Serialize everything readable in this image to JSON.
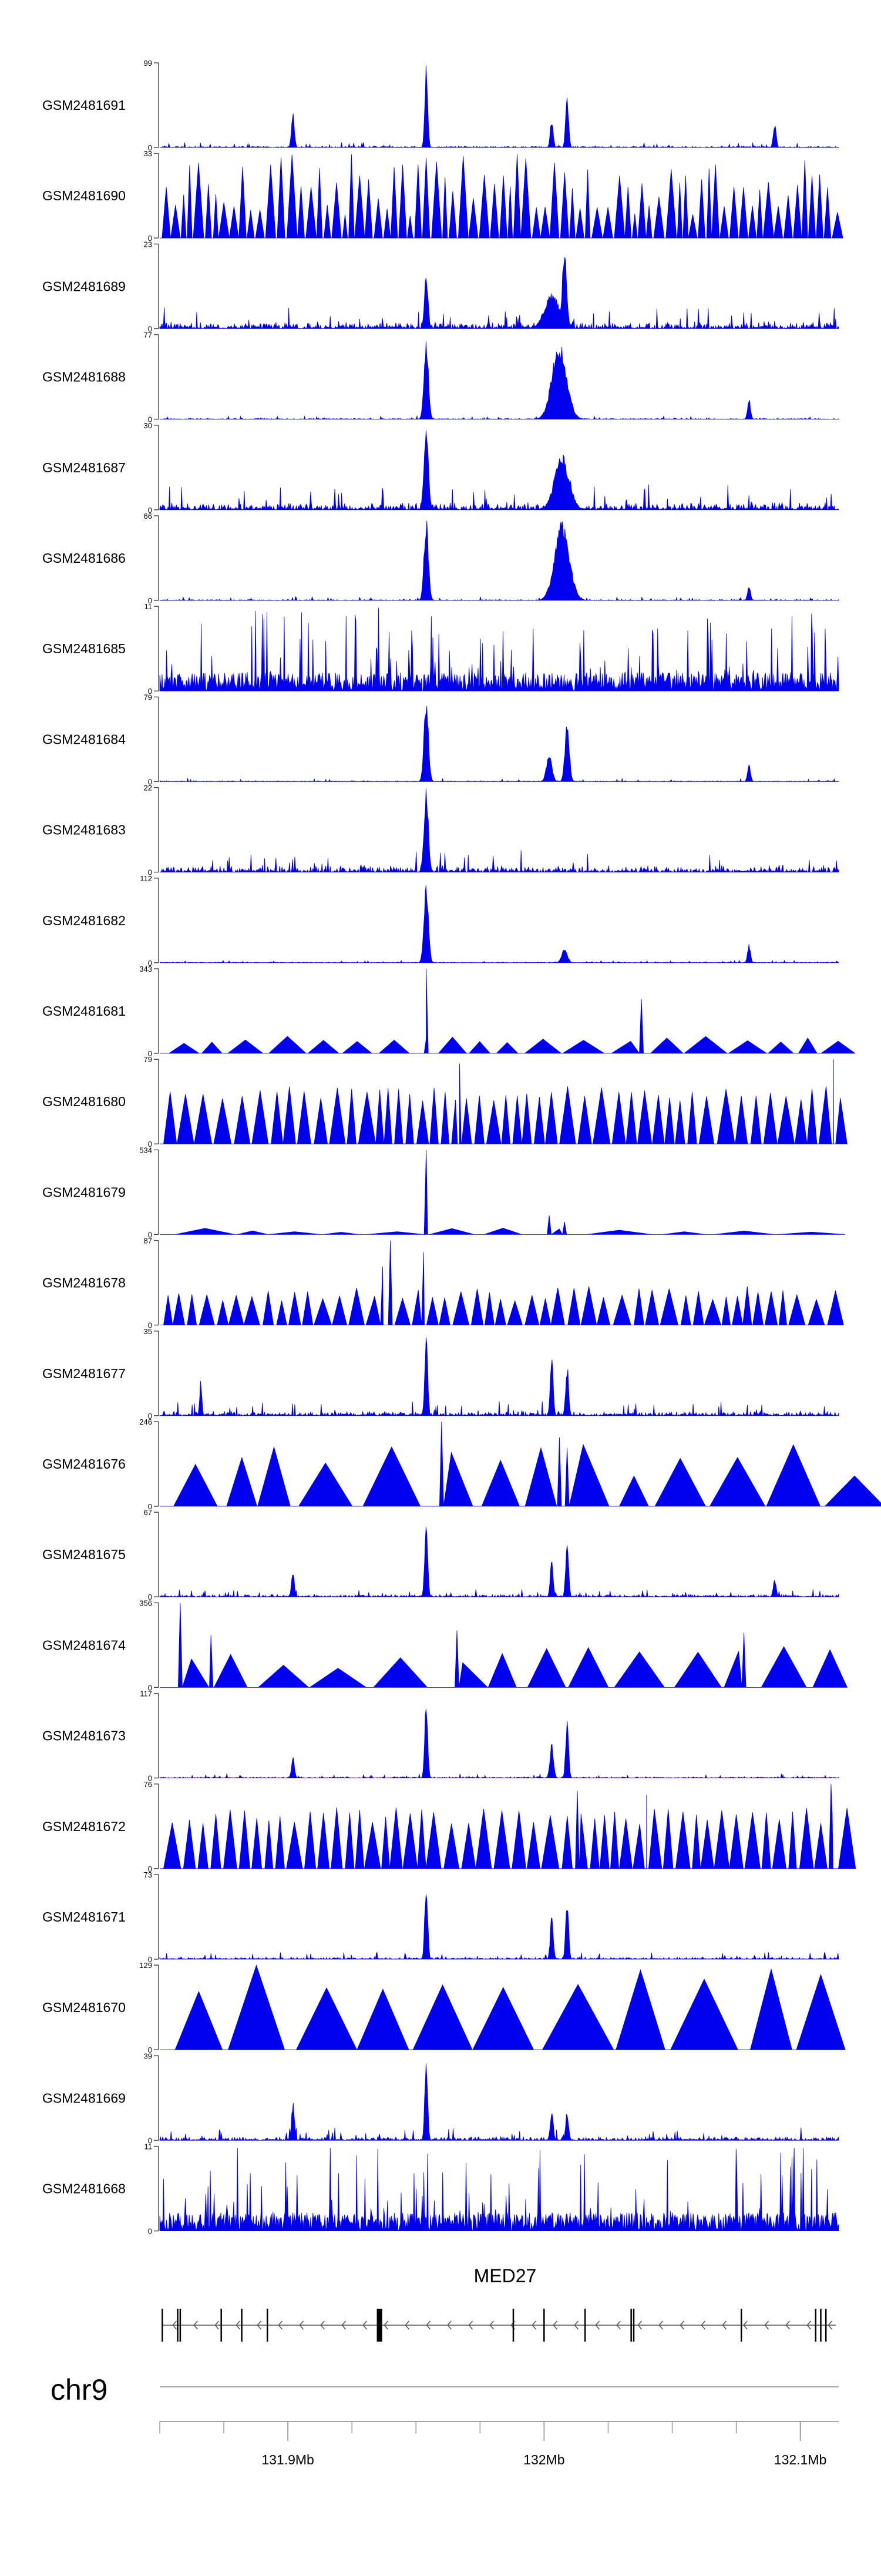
{
  "chart_data": {
    "type": "area",
    "track_color": "#0000ee",
    "gene_color": "#000000",
    "tracks": [
      {
        "name": "GSM2481691",
        "ymax": 99,
        "pattern": "peaks",
        "noise": 2,
        "peaks": [
          [
            131.954,
            99,
            0.0008
          ],
          [
            131.902,
            42,
            0.0008
          ],
          [
            132.003,
            35,
            0.0008
          ],
          [
            132.009,
            62,
            0.0008
          ],
          [
            132.09,
            30,
            0.0008
          ]
        ]
      },
      {
        "name": "GSM2481690",
        "ymax": 33,
        "pattern": "tri",
        "seg": 0.003,
        "lo": 8,
        "hi": 33
      },
      {
        "name": "GSM2481689",
        "ymax": 23,
        "pattern": "peaks",
        "noise": 2,
        "peaks": [
          [
            131.954,
            15,
            0.001
          ],
          [
            132.008,
            23,
            0.0012
          ],
          [
            132.003,
            10,
            0.004
          ]
        ]
      },
      {
        "name": "GSM2481688",
        "ymax": 77,
        "pattern": "peaks",
        "noise": 1,
        "peaks": [
          [
            131.954,
            77,
            0.0012
          ],
          [
            132.006,
            72,
            0.004
          ],
          [
            132.08,
            20,
            0.0008
          ]
        ]
      },
      {
        "name": "GSM2481687",
        "ymax": 30,
        "pattern": "peaks",
        "noise": 3,
        "peaks": [
          [
            131.954,
            30,
            0.0012
          ],
          [
            132.007,
            20,
            0.004
          ]
        ]
      },
      {
        "name": "GSM2481686",
        "ymax": 66,
        "pattern": "peaks",
        "noise": 1,
        "peaks": [
          [
            131.954,
            66,
            0.0012
          ],
          [
            132.007,
            62,
            0.004
          ],
          [
            132.08,
            12,
            0.0008
          ]
        ]
      },
      {
        "name": "GSM2481685",
        "ymax": 11,
        "pattern": "noise",
        "lo": 2,
        "hi": 11
      },
      {
        "name": "GSM2481684",
        "ymax": 79,
        "pattern": "peaks",
        "noise": 1,
        "peaks": [
          [
            131.954,
            79,
            0.0012
          ],
          [
            132.002,
            25,
            0.0015
          ],
          [
            132.009,
            55,
            0.0012
          ],
          [
            132.08,
            18,
            0.0008
          ]
        ]
      },
      {
        "name": "GSM2481683",
        "ymax": 22,
        "pattern": "peaks",
        "noise": 2,
        "peaks": [
          [
            131.954,
            22,
            0.0012
          ]
        ]
      },
      {
        "name": "GSM2481682",
        "ymax": 112,
        "pattern": "peaks",
        "noise": 1,
        "peaks": [
          [
            131.954,
            112,
            0.0012
          ],
          [
            132.008,
            20,
            0.0015
          ],
          [
            132.08,
            25,
            0.0008
          ]
        ]
      },
      {
        "name": "GSM2481681",
        "ymax": 343,
        "pattern": "tri",
        "seg": 0.012,
        "lo": 40,
        "hi": 70,
        "spikes": [
          [
            131.954,
            343
          ],
          [
            132.038,
            220
          ]
        ]
      },
      {
        "name": "GSM2481680",
        "ymax": 79,
        "pattern": "tri",
        "seg": 0.005,
        "lo": 40,
        "hi": 55,
        "spikes": [
          [
            131.967,
            75
          ],
          [
            132.113,
            79
          ]
        ]
      },
      {
        "name": "GSM2481679",
        "ymax": 534,
        "pattern": "tri",
        "seg": 0.02,
        "lo": 10,
        "hi": 40,
        "spikes": [
          [
            131.954,
            534
          ],
          [
            132.002,
            120
          ],
          [
            132.008,
            80
          ]
        ]
      },
      {
        "name": "GSM2481678",
        "ymax": 87,
        "pattern": "tri",
        "seg": 0.005,
        "lo": 25,
        "hi": 40,
        "spikes": [
          [
            131.937,
            60
          ],
          [
            131.94,
            87
          ],
          [
            131.953,
            75
          ]
        ]
      },
      {
        "name": "GSM2481677",
        "ymax": 35,
        "pattern": "peaks",
        "noise": 2,
        "peaks": [
          [
            131.954,
            35,
            0.0008
          ],
          [
            131.866,
            15,
            0.0006
          ],
          [
            132.003,
            25,
            0.0008
          ],
          [
            132.009,
            22,
            0.0008
          ]
        ]
      },
      {
        "name": "GSM2481676",
        "ymax": 246,
        "pattern": "tri",
        "seg": 0.018,
        "lo": 80,
        "hi": 180,
        "spikes": [
          [
            131.96,
            246
          ],
          [
            132.006,
            200
          ],
          [
            132.009,
            170
          ]
        ]
      },
      {
        "name": "GSM2481675",
        "ymax": 67,
        "pattern": "peaks",
        "noise": 2,
        "peaks": [
          [
            131.954,
            67,
            0.0008
          ],
          [
            131.902,
            20,
            0.0008
          ],
          [
            132.003,
            30,
            0.0008
          ],
          [
            132.009,
            45,
            0.0008
          ],
          [
            132.09,
            15,
            0.0008
          ]
        ]
      },
      {
        "name": "GSM2481674",
        "ymax": 356,
        "pattern": "tri",
        "seg": 0.018,
        "lo": 80,
        "hi": 180,
        "spikes": [
          [
            131.858,
            356
          ],
          [
            131.87,
            220
          ],
          [
            131.966,
            240
          ],
          [
            132.078,
            230
          ]
        ]
      },
      {
        "name": "GSM2481673",
        "ymax": 117,
        "pattern": "peaks",
        "noise": 2,
        "peaks": [
          [
            131.954,
            117,
            0.0008
          ],
          [
            132.003,
            50,
            0.001
          ],
          [
            132.009,
            80,
            0.0008
          ],
          [
            131.902,
            30,
            0.0008
          ]
        ]
      },
      {
        "name": "GSM2481672",
        "ymax": 76,
        "pattern": "tri",
        "seg": 0.005,
        "lo": 40,
        "hi": 55,
        "spikes": [
          [
            132.013,
            70
          ],
          [
            132.04,
            66
          ],
          [
            132.112,
            76
          ]
        ]
      },
      {
        "name": "GSM2481671",
        "ymax": 73,
        "pattern": "peaks",
        "noise": 2,
        "peaks": [
          [
            131.954,
            73,
            0.0008
          ],
          [
            132.003,
            40,
            0.0008
          ],
          [
            132.009,
            55,
            0.0008
          ]
        ]
      },
      {
        "name": "GSM2481670",
        "ymax": 129,
        "pattern": "tri",
        "seg": 0.02,
        "lo": 80,
        "hi": 129
      },
      {
        "name": "GSM2481669",
        "ymax": 39,
        "pattern": "peaks",
        "noise": 2,
        "peaks": [
          [
            131.954,
            39,
            0.0008
          ],
          [
            131.902,
            18,
            0.0008
          ],
          [
            132.003,
            15,
            0.0008
          ],
          [
            132.009,
            14,
            0.0008
          ]
        ]
      },
      {
        "name": "GSM2481668",
        "ymax": 11,
        "pattern": "noise",
        "lo": 2,
        "hi": 11
      }
    ],
    "gene": {
      "name": "MED27",
      "start": 131.851,
      "end": 132.114,
      "strand": "-",
      "exons": [
        131.851,
        131.857,
        131.858,
        131.874,
        131.882,
        131.892,
        131.935,
        131.936,
        131.988,
        132.0,
        132.016,
        132.034,
        132.035,
        132.077,
        132.106,
        132.108,
        132.11
      ]
    },
    "axis": {
      "chromosome": "chr9",
      "range": [
        131.85,
        132.115
      ],
      "major_ticks": [
        131.9,
        132.0,
        132.1
      ],
      "major_labels": [
        "131.9Mb",
        "132Mb",
        "132.1Mb"
      ],
      "minor_step": 0.025
    }
  }
}
